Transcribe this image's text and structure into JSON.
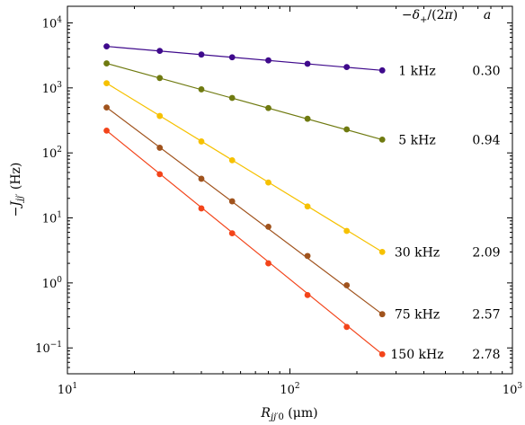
{
  "chart_data": {
    "type": "scatter",
    "title": "",
    "xlabel": "R_jj'0 (μm)",
    "ylabel": "−J_jj' (Hz)",
    "x_scale": "log",
    "y_scale": "log",
    "xlim": [
      10,
      1000
    ],
    "ylim": [
      0.04,
      18000
    ],
    "x_ticks": [
      {
        "value": 10,
        "label": "10^1"
      },
      {
        "value": 100,
        "label": "10^2"
      },
      {
        "value": 1000,
        "label": "10^3"
      }
    ],
    "y_ticks": [
      {
        "value": 0.1,
        "label": "10^−1"
      },
      {
        "value": 1,
        "label": "10^0"
      },
      {
        "value": 10,
        "label": "10^1"
      },
      {
        "value": 100,
        "label": "10^2"
      },
      {
        "value": 1000,
        "label": "10^3"
      },
      {
        "value": 10000,
        "label": "10^4"
      }
    ],
    "grid": false,
    "legend": {
      "placement": "right",
      "header_detuning": "−δ+/(2π)",
      "header_exponent": "a"
    },
    "series": [
      {
        "detuning": "1 kHz",
        "a": "0.30",
        "color": "#3f0a8c",
        "fit_x": [
          15,
          260
        ],
        "fit_y": [
          4350,
          1860
        ],
        "point_x": [
          15,
          26,
          40,
          55,
          80,
          120,
          180,
          260
        ],
        "point_y": [
          4350,
          3710,
          3260,
          2960,
          2650,
          2350,
          2090,
          1860
        ]
      },
      {
        "detuning": "5 kHz",
        "a": "0.94",
        "color": "#6f7a10",
        "fit_x": [
          15,
          260
        ],
        "fit_y": [
          2380,
          160
        ],
        "point_x": [
          15,
          26,
          40,
          55,
          80,
          120,
          180,
          260
        ],
        "point_y": [
          2380,
          1420,
          950,
          700,
          490,
          335,
          230,
          160
        ]
      },
      {
        "detuning": "30 kHz",
        "a": "2.09",
        "color": "#f6c100",
        "fit_x": [
          15,
          260
        ],
        "fit_y": [
          1180,
          3.0
        ],
        "point_x": [
          15,
          26,
          40,
          55,
          80,
          120,
          180,
          260
        ],
        "point_y": [
          1180,
          370,
          150,
          77,
          35,
          15,
          6.3,
          3.0
        ]
      },
      {
        "detuning": "75 kHz",
        "a": "2.57",
        "color": "#a0531d",
        "fit_x": [
          15,
          260
        ],
        "fit_y": [
          500,
          0.33
        ],
        "point_x": [
          15,
          26,
          40,
          55,
          80,
          120,
          180,
          260
        ],
        "point_y": [
          500,
          120,
          40,
          18,
          7.3,
          2.6,
          0.92,
          0.33
        ]
      },
      {
        "detuning": "150 kHz",
        "a": "2.78",
        "color": "#f3441a",
        "fit_x": [
          15,
          260
        ],
        "fit_y": [
          220,
          0.08
        ],
        "point_x": [
          15,
          26,
          40,
          55,
          80,
          120,
          180,
          260
        ],
        "point_y": [
          220,
          47,
          14,
          5.8,
          2.0,
          0.65,
          0.21,
          0.08
        ]
      }
    ]
  }
}
